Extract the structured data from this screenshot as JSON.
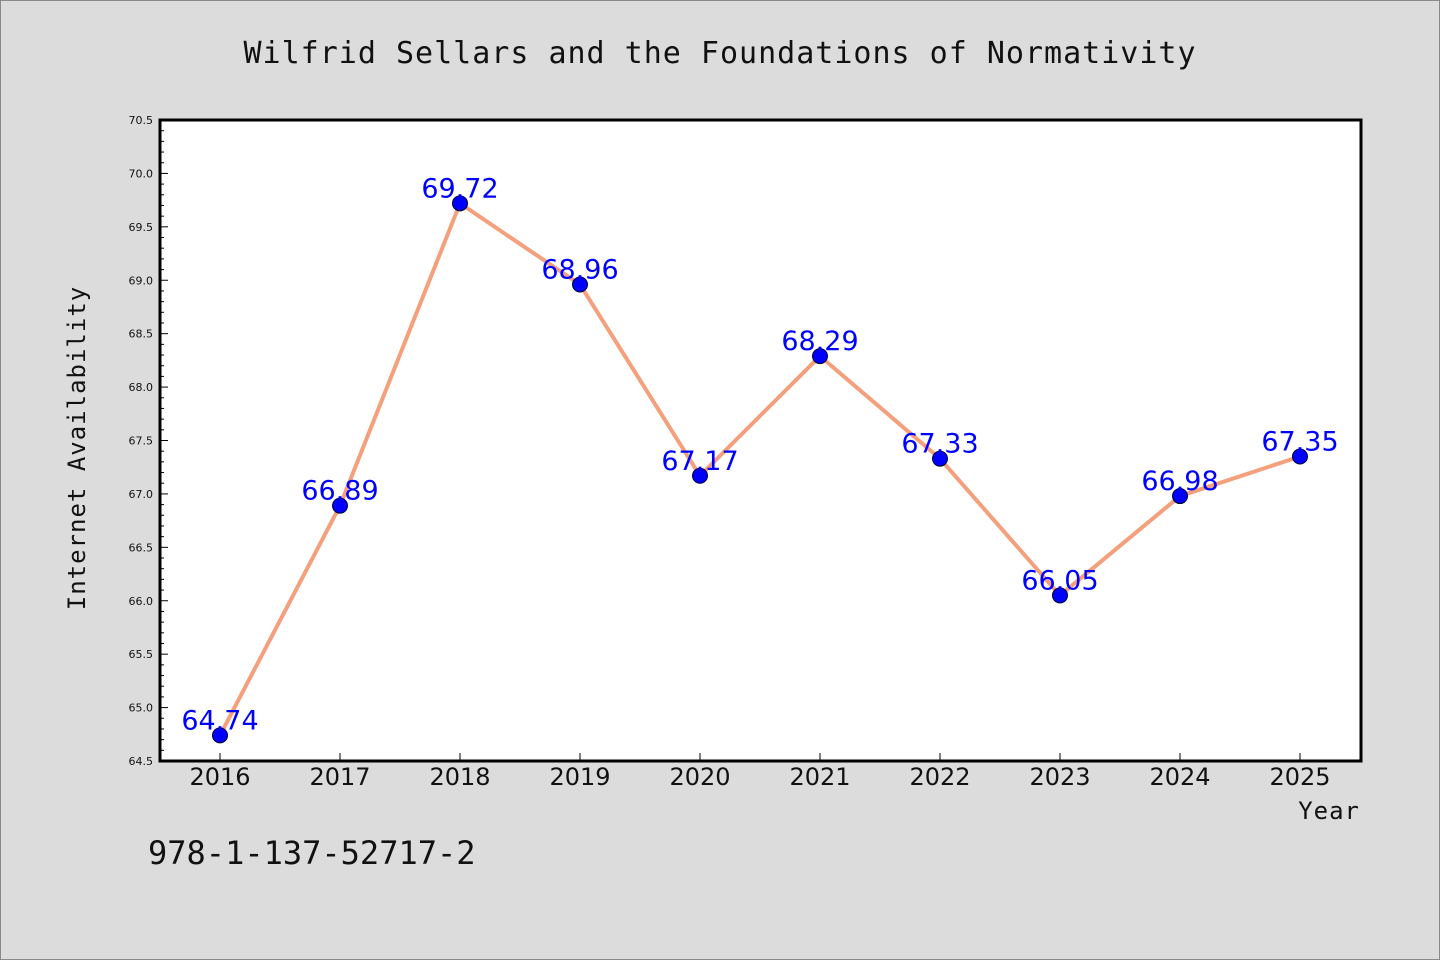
{
  "colors": {
    "background": "#dcdcdc",
    "plot_background": "#ffffff",
    "line": "#f4a07c",
    "marker": "#0000ff",
    "data_label": "#0000ff",
    "axis": "#000000"
  },
  "footer": {
    "isbn": "978-1-137-52717-2"
  },
  "chart_data": {
    "type": "line",
    "title": "Wilfrid Sellars and the Foundations of Normativity",
    "xlabel": "Year",
    "ylabel": "Internet Availability",
    "categories": [
      "2016",
      "2017",
      "2018",
      "2019",
      "2020",
      "2021",
      "2022",
      "2023",
      "2024",
      "2025"
    ],
    "values": [
      64.74,
      66.89,
      69.72,
      68.96,
      67.17,
      68.29,
      67.33,
      66.05,
      66.98,
      67.35
    ],
    "data_labels": [
      "64.74",
      "66.89",
      "69.72",
      "68.96",
      "67.17",
      "68.29",
      "67.33",
      "66.05",
      "66.98",
      "67.35"
    ],
    "ylim": [
      64.5,
      70.5
    ],
    "yticks": [
      "64.5",
      "65.0",
      "65.5",
      "66.0",
      "66.5",
      "67.0",
      "67.5",
      "68.0",
      "68.5",
      "69.0",
      "69.5",
      "70.0",
      "70.5"
    ],
    "grid": false,
    "legend": "none"
  }
}
